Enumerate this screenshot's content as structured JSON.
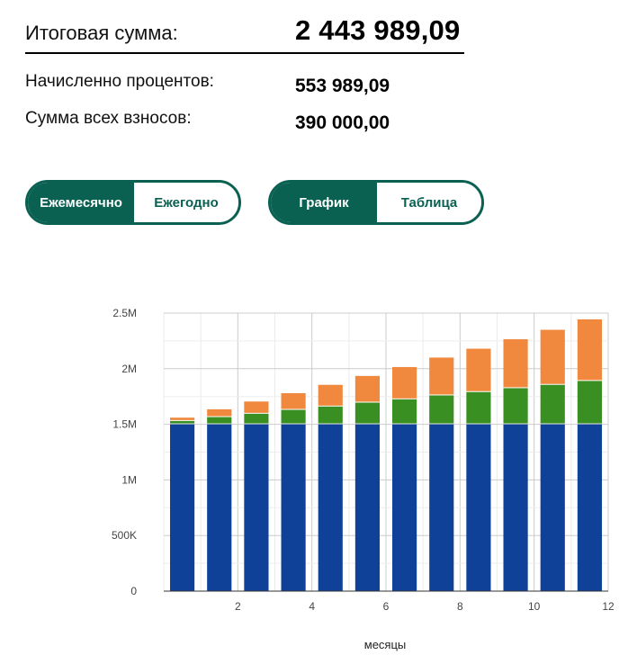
{
  "summary": {
    "total_label": "Итоговая сумма:",
    "total_value": "2 443 989,09",
    "interest_label": "Начисленно процентов:",
    "interest_value": "553 989,09",
    "deposits_label": "Сумма всех взносов:",
    "deposits_value": "390 000,00"
  },
  "period_toggle": {
    "monthly": "Ежемесячно",
    "yearly": "Ежегодно",
    "active": "monthly"
  },
  "view_toggle": {
    "chart": "График",
    "table": "Таблица",
    "active": "chart"
  },
  "colors": {
    "accent": "#0a6152",
    "initial": "#0f4198",
    "deposits": "#3a8f22",
    "interest": "#f0883e"
  },
  "chart_data": {
    "type": "bar",
    "stacked": true,
    "xlabel": "месяцы",
    "ylabel": "",
    "ylim": [
      0,
      2500000
    ],
    "yticks": [
      0,
      500000,
      1000000,
      1500000,
      2000000,
      2500000
    ],
    "ytick_labels": [
      "0",
      "500K",
      "1M",
      "1.5M",
      "2M",
      "2.5M"
    ],
    "xticks": [
      2,
      4,
      6,
      8,
      10,
      12
    ],
    "grid": true,
    "categories": [
      1,
      2,
      3,
      4,
      5,
      6,
      7,
      8,
      9,
      10,
      11,
      12
    ],
    "series": [
      {
        "color": "#0f4198",
        "values": [
          1500000,
          1500000,
          1500000,
          1500000,
          1500000,
          1500000,
          1500000,
          1500000,
          1500000,
          1500000,
          1500000,
          1500000
        ]
      },
      {
        "color": "#3a8f22",
        "values": [
          30000,
          65000,
          95000,
          130000,
          160000,
          195000,
          225000,
          260000,
          290000,
          325000,
          355000,
          390000
        ]
      },
      {
        "color": "#f0883e",
        "values": [
          30000,
          70000,
          110000,
          150000,
          195000,
          240000,
          290000,
          340000,
          390000,
          440000,
          495000,
          554000
        ]
      }
    ]
  }
}
